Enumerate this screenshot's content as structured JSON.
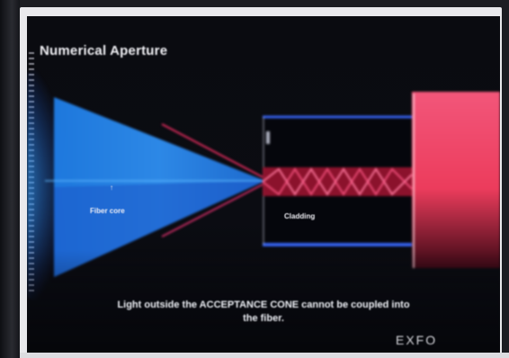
{
  "slide": {
    "title": "Numerical Aperture",
    "caption_line_1": "Light outside the ACCEPTANCE CONE cannot be coupled into",
    "caption_line_2": "the fiber.",
    "logo_text": "EXFO",
    "labels": {
      "cone_label": "Fiber core",
      "cone_marker": "↑",
      "fiber_label": "Cladding"
    }
  },
  "colors": {
    "screen_background": "#0a0b10",
    "cone_blue": "#2e8ff0",
    "light_glow": "#3aa6ff",
    "cladding_blue": "#2a58e8",
    "beam_red": "#e02850",
    "red_panel": "#f0506a",
    "text": "#f0f0f6"
  },
  "icons": {
    "acceptance_cone": "cone-shape",
    "fiber_section": "fiber-core-with-zigzag-light",
    "output_panel": "red-light-block"
  }
}
